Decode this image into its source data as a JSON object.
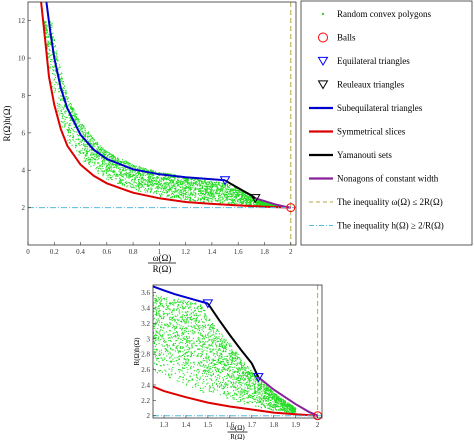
{
  "chart_data": [
    {
      "type": "scatter",
      "xlabel": "ω(Ω)/R(Ω)",
      "ylabel": "R(Ω)h(Ω)",
      "xlim": [
        0,
        2.04
      ],
      "ylim": [
        0,
        13
      ],
      "xticks": [
        "0",
        "0.2",
        "0.4",
        "0.6",
        "0.8",
        "1",
        "1.2",
        "1.4",
        "1.6",
        "1.8",
        "2"
      ],
      "xtick_values": [
        0,
        0.2,
        0.4,
        0.6,
        0.8,
        1.0,
        1.2,
        1.4,
        1.6,
        1.8,
        2.0
      ],
      "yticks": [
        "2",
        "4",
        "6",
        "8",
        "10",
        "12"
      ],
      "ytick_values": [
        2,
        4,
        6,
        8,
        10,
        12
      ],
      "grid": false,
      "legend_position": "outside-right",
      "series": [
        {
          "name": "Random convex polygons",
          "color": "#22dd22",
          "style": "scatter",
          "lower": [
            [
              0.12,
              12.0
            ],
            [
              0.15,
              10.0
            ],
            [
              0.2,
              7.8
            ],
            [
              0.25,
              6.5
            ],
            [
              0.3,
              5.6
            ],
            [
              0.4,
              4.6
            ],
            [
              0.5,
              4.0
            ],
            [
              0.6,
              3.5
            ],
            [
              0.8,
              2.95
            ],
            [
              1.0,
              2.6
            ],
            [
              1.2,
              2.4
            ],
            [
              1.4,
              2.25
            ],
            [
              1.6,
              2.15
            ],
            [
              1.8,
              2.08
            ],
            [
              1.95,
              2.02
            ]
          ],
          "upper": [
            [
              0.18,
              12.0
            ],
            [
              0.2,
              11.0
            ],
            [
              0.25,
              9.4
            ],
            [
              0.3,
              8.0
            ],
            [
              0.4,
              6.6
            ],
            [
              0.5,
              5.7
            ],
            [
              0.6,
              5.0
            ],
            [
              0.8,
              4.3
            ],
            [
              1.0,
              3.9
            ],
            [
              1.2,
              3.65
            ],
            [
              1.4,
              3.4
            ],
            [
              1.5,
              3.32
            ],
            [
              1.6,
              3.0
            ],
            [
              1.7,
              2.6
            ],
            [
              1.8,
              2.3
            ],
            [
              1.95,
              2.05
            ]
          ]
        },
        {
          "name": "Balls",
          "color": "#ff0000",
          "style": "circle",
          "points": [
            [
              2.0,
              2.0
            ]
          ]
        },
        {
          "name": "Equilateral triangles",
          "color": "#0000ff",
          "style": "triangle-down",
          "points": [
            [
              1.5,
              3.46
            ]
          ]
        },
        {
          "name": "Reuleaux triangles",
          "color": "#000000",
          "style": "triangle-down",
          "points": [
            [
              1.73,
              2.5
            ]
          ]
        },
        {
          "name": "Subequilateral triangles",
          "color": "#0000cc",
          "style": "line",
          "points": [
            [
              0.14,
              13.0
            ],
            [
              0.17,
              11.4
            ],
            [
              0.2,
              10.0
            ],
            [
              0.25,
              8.4
            ],
            [
              0.3,
              7.3
            ],
            [
              0.4,
              5.9
            ],
            [
              0.5,
              5.1
            ],
            [
              0.6,
              4.6
            ],
            [
              0.8,
              4.05
            ],
            [
              1.0,
              3.78
            ],
            [
              1.2,
              3.62
            ],
            [
              1.4,
              3.52
            ],
            [
              1.5,
              3.46
            ]
          ]
        },
        {
          "name": "Symmetrical slices",
          "color": "#dd0000",
          "style": "line",
          "points": [
            [
              0.1,
              13.0
            ],
            [
              0.13,
              11.0
            ],
            [
              0.16,
              9.0
            ],
            [
              0.2,
              7.5
            ],
            [
              0.25,
              6.2
            ],
            [
              0.3,
              5.3
            ],
            [
              0.4,
              4.3
            ],
            [
              0.5,
              3.7
            ],
            [
              0.6,
              3.3
            ],
            [
              0.8,
              2.8
            ],
            [
              1.0,
              2.5
            ],
            [
              1.2,
              2.3
            ],
            [
              1.4,
              2.2
            ],
            [
              1.6,
              2.12
            ],
            [
              1.8,
              2.05
            ],
            [
              2.0,
              2.0
            ]
          ]
        },
        {
          "name": "Yamanouti sets",
          "color": "#000000",
          "style": "line",
          "points": [
            [
              1.5,
              3.46
            ],
            [
              1.55,
              3.25
            ],
            [
              1.6,
              3.05
            ],
            [
              1.65,
              2.85
            ],
            [
              1.7,
              2.66
            ],
            [
              1.73,
              2.5
            ]
          ]
        },
        {
          "name": "Nonagons of constant width",
          "color": "#882299",
          "style": "line",
          "points": [
            [
              1.73,
              2.5
            ],
            [
              1.8,
              2.35
            ],
            [
              1.88,
              2.18
            ],
            [
              1.95,
              2.06
            ],
            [
              2.0,
              2.0
            ]
          ]
        },
        {
          "name": "The inequality ω(Ω) ≤ 2R(Ω)",
          "color": "#b5a642",
          "style": "dashed-vertical",
          "x": 2.0
        },
        {
          "name": "The inequality h(Ω) ≥ 2/R(Ω)",
          "color": "#55bbdd",
          "style": "dashdot-horizontal",
          "y": 2.0
        }
      ]
    },
    {
      "type": "scatter",
      "xlabel": "ω(Ω)/R(Ω)",
      "ylabel": "R(Ω)h(Ω)",
      "xlim": [
        1.25,
        2.02
      ],
      "ylim": [
        1.97,
        3.7
      ],
      "xticks": [
        "1.3",
        "1.4",
        "1.5",
        "1.6",
        "1.7",
        "1.8",
        "1.9",
        "2"
      ],
      "xtick_values": [
        1.3,
        1.4,
        1.5,
        1.6,
        1.7,
        1.8,
        1.9,
        2.0
      ],
      "yticks": [
        "2",
        "2.2",
        "2.4",
        "2.6",
        "2.8",
        "3",
        "3.2",
        "3.4",
        "3.6"
      ],
      "ytick_values": [
        2.0,
        2.2,
        2.4,
        2.6,
        2.8,
        3.0,
        3.2,
        3.4,
        3.6
      ],
      "grid": false,
      "series": [
        {
          "name": "Random convex polygons",
          "color": "#22dd22",
          "style": "scatter",
          "lower": [
            [
              1.25,
              2.55
            ],
            [
              1.3,
              2.48
            ],
            [
              1.4,
              2.38
            ],
            [
              1.5,
              2.28
            ],
            [
              1.6,
              2.2
            ],
            [
              1.7,
              2.13
            ],
            [
              1.8,
              2.07
            ],
            [
              1.9,
              2.03
            ]
          ],
          "upper": [
            [
              1.25,
              3.58
            ],
            [
              1.3,
              3.55
            ],
            [
              1.4,
              3.5
            ],
            [
              1.48,
              3.44
            ],
            [
              1.5,
              3.3
            ],
            [
              1.55,
              3.1
            ],
            [
              1.6,
              2.95
            ],
            [
              1.65,
              2.75
            ],
            [
              1.7,
              2.58
            ],
            [
              1.75,
              2.45
            ],
            [
              1.8,
              2.3
            ],
            [
              1.9,
              2.1
            ]
          ]
        },
        {
          "name": "Balls",
          "color": "#ff0000",
          "style": "circle",
          "points": [
            [
              2.0,
              2.0
            ]
          ]
        },
        {
          "name": "Equilateral triangles",
          "color": "#0000ff",
          "style": "triangle-down",
          "points": [
            [
              1.5,
              3.46
            ]
          ]
        },
        {
          "name": "Reuleaux triangles",
          "color": "#0000ff",
          "style": "triangle-down",
          "points": [
            [
              1.73,
              2.5
            ]
          ]
        },
        {
          "name": "Subequilateral triangles",
          "color": "#0000cc",
          "style": "line",
          "points": [
            [
              1.25,
              3.68
            ],
            [
              1.3,
              3.63
            ],
            [
              1.35,
              3.58
            ],
            [
              1.4,
              3.54
            ],
            [
              1.45,
              3.5
            ],
            [
              1.5,
              3.46
            ]
          ]
        },
        {
          "name": "Symmetrical slices",
          "color": "#dd0000",
          "style": "line",
          "points": [
            [
              1.25,
              2.38
            ],
            [
              1.3,
              2.32
            ],
            [
              1.4,
              2.24
            ],
            [
              1.5,
              2.17
            ],
            [
              1.6,
              2.12
            ],
            [
              1.7,
              2.08
            ],
            [
              1.8,
              2.04
            ],
            [
              1.9,
              2.02
            ],
            [
              2.0,
              2.0
            ]
          ]
        },
        {
          "name": "Yamanouti sets",
          "color": "#000000",
          "style": "line",
          "points": [
            [
              1.5,
              3.46
            ],
            [
              1.55,
              3.25
            ],
            [
              1.6,
              3.05
            ],
            [
              1.65,
              2.86
            ],
            [
              1.7,
              2.68
            ],
            [
              1.73,
              2.5
            ]
          ]
        },
        {
          "name": "Nonagons of constant width",
          "color": "#882299",
          "style": "line",
          "points": [
            [
              1.73,
              2.5
            ],
            [
              1.8,
              2.34
            ],
            [
              1.9,
              2.15
            ],
            [
              1.96,
              2.05
            ],
            [
              2.0,
              2.0
            ]
          ]
        },
        {
          "name": "The inequality ω(Ω) ≤ 2R(Ω)",
          "color": "#b5a642",
          "style": "dashed-vertical",
          "x": 2.0
        },
        {
          "name": "The inequality h(Ω) ≥ 2/R(Ω)",
          "color": "#55bbdd",
          "style": "dashdot-horizontal",
          "y": 2.0
        }
      ]
    }
  ],
  "legend": {
    "items": [
      {
        "label": "Random convex polygons",
        "symbol": "dot",
        "color": "#44cc44"
      },
      {
        "label": "Balls",
        "symbol": "circle",
        "color": "#ff0000"
      },
      {
        "label": "Equilateral triangles",
        "symbol": "triangle-down",
        "color": "#0000ff"
      },
      {
        "label": "Reuleaux triangles",
        "symbol": "triangle-down",
        "color": "#000000"
      },
      {
        "label": "Subequilateral triangles",
        "symbol": "line",
        "color": "#0000cc"
      },
      {
        "label": "Symmetrical slices",
        "symbol": "line",
        "color": "#dd0000"
      },
      {
        "label": "Yamanouti sets",
        "symbol": "line",
        "color": "#000000"
      },
      {
        "label": "Nonagons of constant width",
        "symbol": "line",
        "color": "#882299"
      },
      {
        "label": "The inequality ω(Ω) ≤ 2R(Ω)",
        "symbol": "dashed",
        "color": "#b5a642"
      },
      {
        "label": "The inequality h(Ω) ≥ 2/R(Ω)",
        "symbol": "dashdot",
        "color": "#55bbdd"
      }
    ]
  }
}
